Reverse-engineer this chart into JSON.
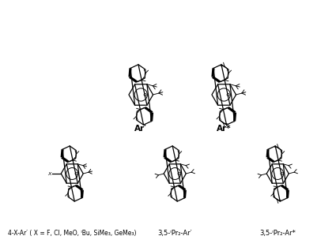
{
  "background_color": "#ffffff",
  "label1": "4-X-Ar′ ( X = F, Cl, MeO, ᴵBu, SiMe₃, GeMe₃)",
  "label2": "3,5-ᴵPr₂-Ar′",
  "label3": "3,5-ᴵPr₂-Ar*",
  "name_Ar_prime": "Ar′",
  "name_Ar_star": "Ar*",
  "label_fs": 5.5,
  "name_fs": 7.5
}
